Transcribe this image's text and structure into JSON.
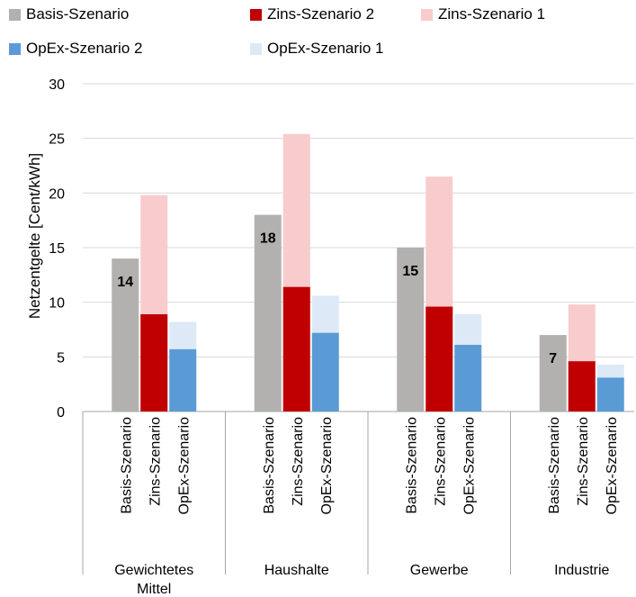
{
  "chart_data": {
    "type": "bar",
    "ylabel": "Netzentgelte [Cent/kWh]",
    "ylim": [
      0,
      30
    ],
    "yticks": [
      0,
      5,
      10,
      15,
      20,
      25,
      30
    ],
    "grid": true,
    "legend_position": "top",
    "legend": [
      {
        "name": "Basis-Szenario",
        "color": "#b3b0b0"
      },
      {
        "name": "Zins-Szenario 2",
        "color": "#c00000"
      },
      {
        "name": "Zins-Szenario 1",
        "color": "#f8cccc"
      },
      {
        "name": "OpEx-Szenario 2",
        "color": "#5b9bd5"
      },
      {
        "name": "OpEx-Szenario 1",
        "color": "#dde9f6"
      }
    ],
    "group_bar_labels": [
      "Basis-Szenario",
      "Zins-Szenario",
      "OpEx-Szenario"
    ],
    "groups": [
      {
        "name": "Gewichtetes Mittel",
        "basis": 14,
        "basis_label": "14",
        "zins2": 8.9,
        "zins1": 19.8,
        "opex2": 5.7,
        "opex1": 8.2
      },
      {
        "name": "Haushalte",
        "basis": 18,
        "basis_label": "18",
        "zins2": 11.4,
        "zins1": 25.4,
        "opex2": 7.2,
        "opex1": 10.6
      },
      {
        "name": "Gewerbe",
        "basis": 15,
        "basis_label": "15",
        "zins2": 9.6,
        "zins1": 21.5,
        "opex2": 6.1,
        "opex1": 8.9
      },
      {
        "name": "Industrie",
        "basis": 7,
        "basis_label": "7",
        "zins2": 4.6,
        "zins1": 9.8,
        "opex2": 3.1,
        "opex1": 4.3
      }
    ]
  }
}
